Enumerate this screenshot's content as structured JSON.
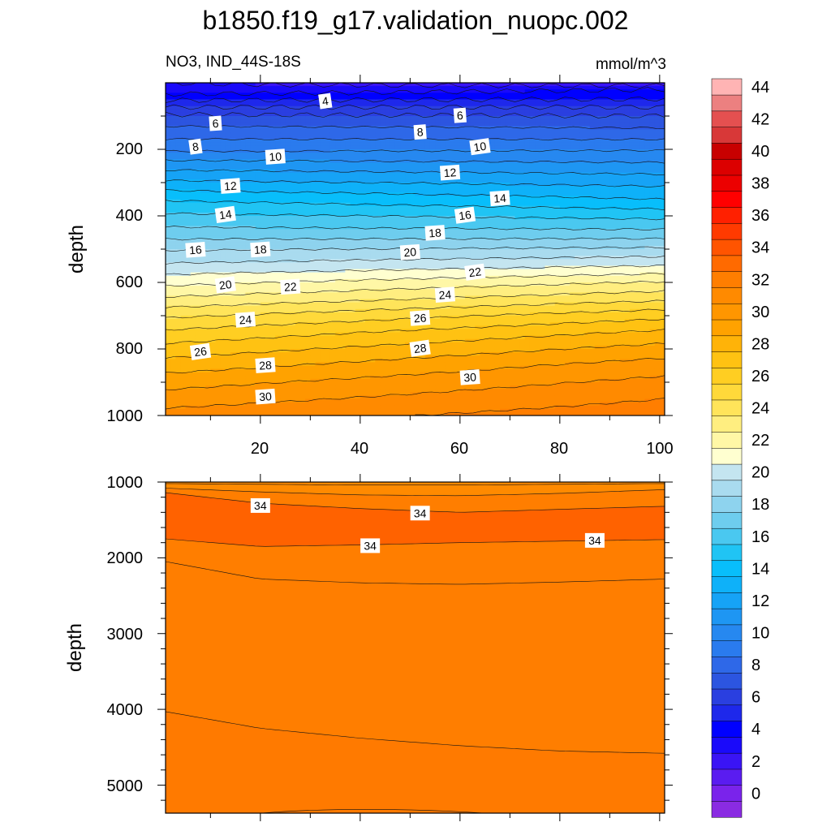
{
  "chart_data": {
    "type": "contour",
    "title": "b1850.f19_g17.validation_nuopc.002",
    "subtitle_left": "NO3, IND_44S-18S",
    "subtitle_right": "mmol/m^3",
    "panels": [
      {
        "name": "upper",
        "xlim": [
          1,
          101
        ],
        "ylim": [
          0,
          1000
        ],
        "y_reversed": true,
        "ylabel": "depth",
        "x_ticks": [
          "20",
          "40",
          "60",
          "80",
          "100"
        ],
        "y_ticks": [
          "200",
          "400",
          "600",
          "800",
          "1000"
        ],
        "contour_interval": 1,
        "depth_profile_y": [
          0,
          20,
          40,
          60,
          80,
          100,
          150,
          200,
          250,
          300,
          350,
          400,
          450,
          500,
          550,
          600,
          650,
          700,
          750,
          800,
          850,
          900,
          950,
          1000
        ],
        "profile_west_x1": [
          2.0,
          2.3,
          3.3,
          4.4,
          5.3,
          6.2,
          7.5,
          8.8,
          10.6,
          12.2,
          13.9,
          15.2,
          16.4,
          17.9,
          19.2,
          20.7,
          22.2,
          23.8,
          25.2,
          26.4,
          27.5,
          28.6,
          29.5,
          30.4
        ],
        "profile_east_x101": [
          1.2,
          3.0,
          3.7,
          4.4,
          5.3,
          6.0,
          7.4,
          8.9,
          10.3,
          11.7,
          13.0,
          14.7,
          16.3,
          18.2,
          20.0,
          22.1,
          23.8,
          25.7,
          27.2,
          28.4,
          29.5,
          30.3,
          31.0,
          31.6
        ],
        "contour_labels": [
          {
            "text": "4",
            "x": 33,
            "y": 55
          },
          {
            "text": "6",
            "x": 11,
            "y": 122
          },
          {
            "text": "6",
            "x": 60,
            "y": 98
          },
          {
            "text": "8",
            "x": 7,
            "y": 192
          },
          {
            "text": "8",
            "x": 52,
            "y": 148
          },
          {
            "text": "10",
            "x": 23,
            "y": 222
          },
          {
            "text": "10",
            "x": 64,
            "y": 192
          },
          {
            "text": "12",
            "x": 14,
            "y": 310
          },
          {
            "text": "12",
            "x": 58,
            "y": 270
          },
          {
            "text": "14",
            "x": 13,
            "y": 396
          },
          {
            "text": "14",
            "x": 68,
            "y": 347
          },
          {
            "text": "16",
            "x": 7,
            "y": 502
          },
          {
            "text": "16",
            "x": 61,
            "y": 398
          },
          {
            "text": "18",
            "x": 20,
            "y": 501
          },
          {
            "text": "18",
            "x": 55,
            "y": 451
          },
          {
            "text": "20",
            "x": 13,
            "y": 607
          },
          {
            "text": "20",
            "x": 50,
            "y": 509
          },
          {
            "text": "22",
            "x": 26,
            "y": 613
          },
          {
            "text": "22",
            "x": 63,
            "y": 569
          },
          {
            "text": "24",
            "x": 17,
            "y": 712
          },
          {
            "text": "24",
            "x": 57,
            "y": 637
          },
          {
            "text": "26",
            "x": 8,
            "y": 808
          },
          {
            "text": "26",
            "x": 52,
            "y": 707
          },
          {
            "text": "28",
            "x": 21,
            "y": 849
          },
          {
            "text": "28",
            "x": 52,
            "y": 798
          },
          {
            "text": "30",
            "x": 21,
            "y": 943
          },
          {
            "text": "30",
            "x": 62,
            "y": 885
          }
        ]
      },
      {
        "name": "lower",
        "xlim": [
          1,
          101
        ],
        "ylim": [
          1000,
          5370
        ],
        "y_reversed": true,
        "ylabel": "depth",
        "y_ticks": [
          "1000",
          "2000",
          "3000",
          "4000",
          "5000"
        ],
        "contour_interval": 1,
        "field_levels": [
          {
            "level": 34,
            "x": [
              1,
              20,
              40,
              60,
              80,
              101
            ],
            "y": [
              1750,
              1850,
              1830,
              1800,
              1780,
              1760
            ]
          },
          {
            "level": 33,
            "x": [
              1,
              20,
              40,
              60,
              80,
              101
            ],
            "y": [
              4030,
              4250,
              4380,
              4480,
              4550,
              4580
            ]
          }
        ],
        "contour_labels": [
          {
            "text": "34",
            "x": 20,
            "y": 1310
          },
          {
            "text": "34",
            "x": 52,
            "y": 1410
          },
          {
            "text": "34",
            "x": 42,
            "y": 1840
          },
          {
            "text": "34",
            "x": 87,
            "y": 1770
          }
        ]
      }
    ],
    "colorbar": {
      "tick_labels": [
        "0",
        "2",
        "4",
        "6",
        "8",
        "10",
        "12",
        "14",
        "16",
        "18",
        "20",
        "22",
        "24",
        "26",
        "28",
        "30",
        "32",
        "34",
        "36",
        "38",
        "40",
        "42",
        "44"
      ],
      "colors": [
        "#8A2BE2",
        "#7A23EB",
        "#5A1CF0",
        "#3A14F5",
        "#1A0AFA",
        "#0000FF",
        "#1E28EB",
        "#2A3FE0",
        "#2C55E0",
        "#2E68E8",
        "#2A7BEE",
        "#2688F0",
        "#1E96F3",
        "#16A3F6",
        "#0EB1F9",
        "#08BEFB",
        "#20C4F4",
        "#4AC8F0",
        "#6ECDEE",
        "#8ED3EE",
        "#A9DBEF",
        "#C4E5F0",
        "#FFFFD0",
        "#FFF7A6",
        "#FFEE80",
        "#FFE45A",
        "#FFD93A",
        "#FFCE22",
        "#FFC212",
        "#FFB308",
        "#FFA200",
        "#FF9600",
        "#FF8A00",
        "#FF7E00",
        "#FF6A00",
        "#FF5400",
        "#FF3A00",
        "#FF2000",
        "#FF0000",
        "#EC0000",
        "#DC0000",
        "#C80000",
        "#D83838",
        "#E45050",
        "#EC8080",
        "#FFB4B4"
      ]
    }
  }
}
